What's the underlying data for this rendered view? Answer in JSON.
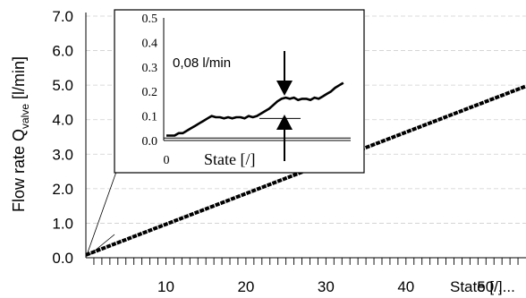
{
  "chart_data": [
    {
      "type": "line",
      "role": "main",
      "ylabel_prefix": "Flow rate Q",
      "ylabel_sub": "valve",
      "ylabel_suffix": " [l/min]",
      "xlabel": "State [/]",
      "ylim": [
        0,
        7
      ],
      "yticks": [
        "0.0",
        "1.0",
        "2.0",
        "3.0",
        "4.0",
        "5.0",
        "6.0",
        "7.0"
      ],
      "xlim": [
        0,
        55
      ],
      "xticks": [
        {
          "label": "10",
          "x": 10
        },
        {
          "label": "20",
          "x": 20
        },
        {
          "label": "30",
          "x": 30
        },
        {
          "label": "40",
          "x": 40
        },
        {
          "label": "50 ....",
          "x": 50
        }
      ],
      "grid": true,
      "series": [
        {
          "x": [
            0,
            55
          ],
          "y": [
            0.08,
            4.97
          ]
        }
      ]
    },
    {
      "type": "line",
      "role": "inset",
      "xlabel": "State [/]",
      "xtick_label": "0",
      "ylim": [
        0,
        0.5
      ],
      "yticks": [
        "0.0",
        "0.1",
        "0.2",
        "0.3",
        "0.4",
        "0.5"
      ],
      "annotation": "0,08 l/min",
      "reference_lines": [
        0.01,
        0.09
      ],
      "series": [
        {
          "x": [
            0,
            1,
            2,
            3,
            4,
            5,
            6,
            7,
            8,
            9,
            10,
            11,
            12,
            13,
            14,
            15,
            16,
            17,
            18,
            19,
            20,
            21,
            22,
            23,
            24,
            25,
            26,
            27,
            28,
            29,
            30,
            31,
            32,
            33,
            34,
            35,
            36,
            37,
            38,
            39,
            40,
            41,
            42,
            43
          ],
          "y": [
            0.02,
            0.02,
            0.02,
            0.03,
            0.03,
            0.04,
            0.05,
            0.06,
            0.07,
            0.08,
            0.09,
            0.1,
            0.095,
            0.095,
            0.09,
            0.095,
            0.09,
            0.095,
            0.095,
            0.09,
            0.1,
            0.095,
            0.1,
            0.11,
            0.12,
            0.13,
            0.145,
            0.16,
            0.17,
            0.175,
            0.17,
            0.175,
            0.165,
            0.17,
            0.17,
            0.165,
            0.175,
            0.17,
            0.18,
            0.19,
            0.2,
            0.215,
            0.225,
            0.235
          ]
        }
      ]
    }
  ]
}
